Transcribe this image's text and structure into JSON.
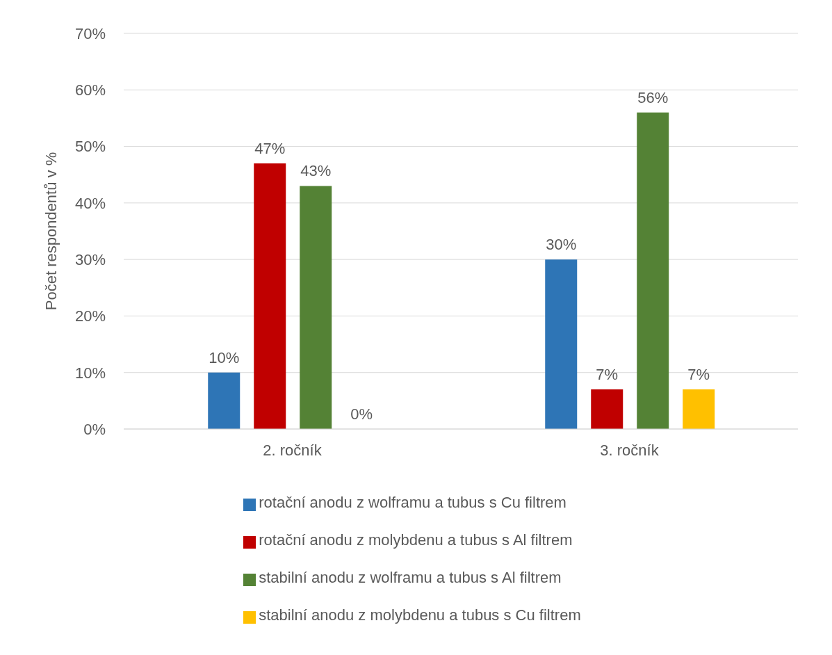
{
  "chart_data": {
    "type": "bar",
    "ylabel": "Počet respondentů v %",
    "categories": [
      "2. ročník",
      "3. ročník"
    ],
    "series": [
      {
        "name": "rotační anodu z wolframu a tubus s Cu filtrem",
        "color": "#2e75b6",
        "values": [
          10,
          30
        ],
        "value_labels": [
          "10%",
          "30%"
        ]
      },
      {
        "name": "rotační anodu z molybdenu a tubus s Al filtrem",
        "color": "#c00000",
        "values": [
          47,
          7
        ],
        "value_labels": [
          "47%",
          "7%"
        ]
      },
      {
        "name": "stabilní anodu z wolframu a tubus s Al filtrem",
        "color": "#548235",
        "values": [
          43,
          56
        ],
        "value_labels": [
          "43%",
          "56%"
        ]
      },
      {
        "name": "stabilní anodu z molybdenu a tubus s Cu filtrem",
        "color": "#ffc000",
        "values": [
          0,
          7
        ],
        "value_labels": [
          "0%",
          "7%"
        ]
      }
    ],
    "ylim": [
      0,
      70
    ],
    "yticks": [
      {
        "value": 0,
        "label": "0%"
      },
      {
        "value": 10,
        "label": "10%"
      },
      {
        "value": 20,
        "label": "20%"
      },
      {
        "value": 30,
        "label": "30%"
      },
      {
        "value": 40,
        "label": "40%"
      },
      {
        "value": 50,
        "label": "50%"
      },
      {
        "value": 60,
        "label": "60%"
      },
      {
        "value": 70,
        "label": "70%"
      }
    ],
    "grid": "y",
    "legend": "bottom"
  }
}
